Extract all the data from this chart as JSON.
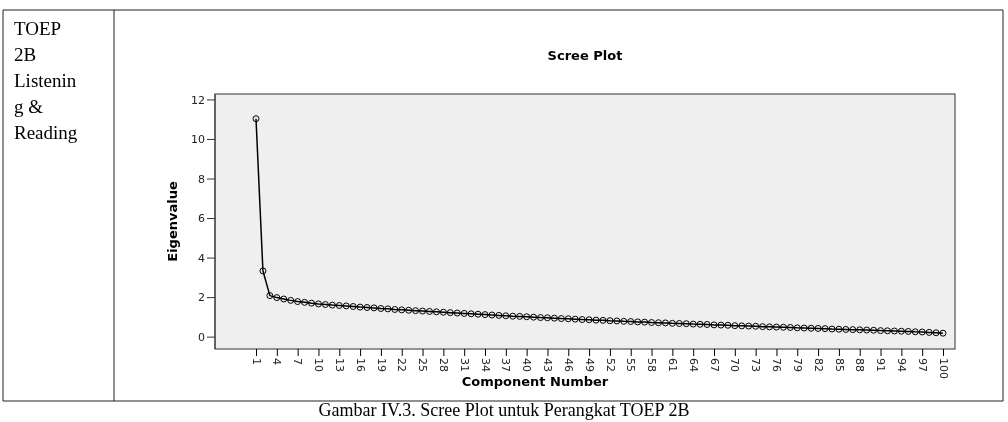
{
  "chart_data": {
    "type": "line",
    "title": "Scree Plot",
    "xlabel": "Component Number",
    "ylabel": "Eigenvalue",
    "annotations": [
      "TOEP 2B Listening & Reading",
      "Gambar IV.3. Scree Plot untuk Perangkat TOEP 2B"
    ],
    "categories": [
      "1",
      null,
      null,
      "4",
      null,
      null,
      "7",
      null,
      null,
      "10",
      null,
      null,
      "13",
      null,
      null,
      "16",
      null,
      null,
      "19",
      null,
      null,
      "22",
      null,
      null,
      "25",
      null,
      null,
      "28",
      null,
      null,
      "31",
      null,
      null,
      "34",
      null,
      null,
      "37",
      null,
      null,
      "40",
      null,
      null,
      "43",
      null,
      null,
      "46",
      null,
      null,
      "49",
      null,
      null,
      "52",
      null,
      null,
      "55",
      null,
      null,
      "58",
      null,
      null,
      "61",
      null,
      null,
      "64",
      null,
      null,
      "67",
      null,
      null,
      "70",
      null,
      null,
      "73",
      null,
      null,
      "76",
      null,
      null,
      "79",
      null,
      null,
      "82",
      null,
      null,
      "85",
      null,
      null,
      "88",
      null,
      null,
      "91",
      null,
      null,
      "94",
      null,
      null,
      "97",
      null,
      null,
      "100"
    ],
    "series": [
      {
        "color": "#000000",
        "values": [
          11.05,
          3.35,
          2.1,
          2.0,
          1.93,
          1.86,
          1.8,
          1.76,
          1.72,
          1.68,
          1.65,
          1.62,
          1.6,
          1.58,
          1.55,
          1.52,
          1.5,
          1.48,
          1.45,
          1.43,
          1.4,
          1.38,
          1.36,
          1.34,
          1.32,
          1.3,
          1.28,
          1.26,
          1.24,
          1.22,
          1.2,
          1.18,
          1.16,
          1.14,
          1.12,
          1.1,
          1.08,
          1.06,
          1.05,
          1.03,
          1.01,
          0.99,
          0.98,
          0.96,
          0.94,
          0.93,
          0.91,
          0.89,
          0.88,
          0.86,
          0.85,
          0.83,
          0.82,
          0.8,
          0.79,
          0.77,
          0.76,
          0.74,
          0.73,
          0.72,
          0.7,
          0.69,
          0.68,
          0.66,
          0.65,
          0.64,
          0.62,
          0.61,
          0.6,
          0.58,
          0.57,
          0.56,
          0.55,
          0.53,
          0.52,
          0.51,
          0.5,
          0.49,
          0.47,
          0.46,
          0.45,
          0.44,
          0.43,
          0.41,
          0.4,
          0.39,
          0.38,
          0.37,
          0.36,
          0.35,
          0.33,
          0.32,
          0.31,
          0.3,
          0.29,
          0.27,
          0.26,
          0.24,
          0.22,
          0.2
        ]
      }
    ],
    "ylim": [
      -0.6,
      12.3
    ],
    "yticks": [
      0,
      2,
      4,
      6,
      8,
      10,
      12
    ],
    "grid": false,
    "marker": "circle",
    "line_style": "solid"
  }
}
